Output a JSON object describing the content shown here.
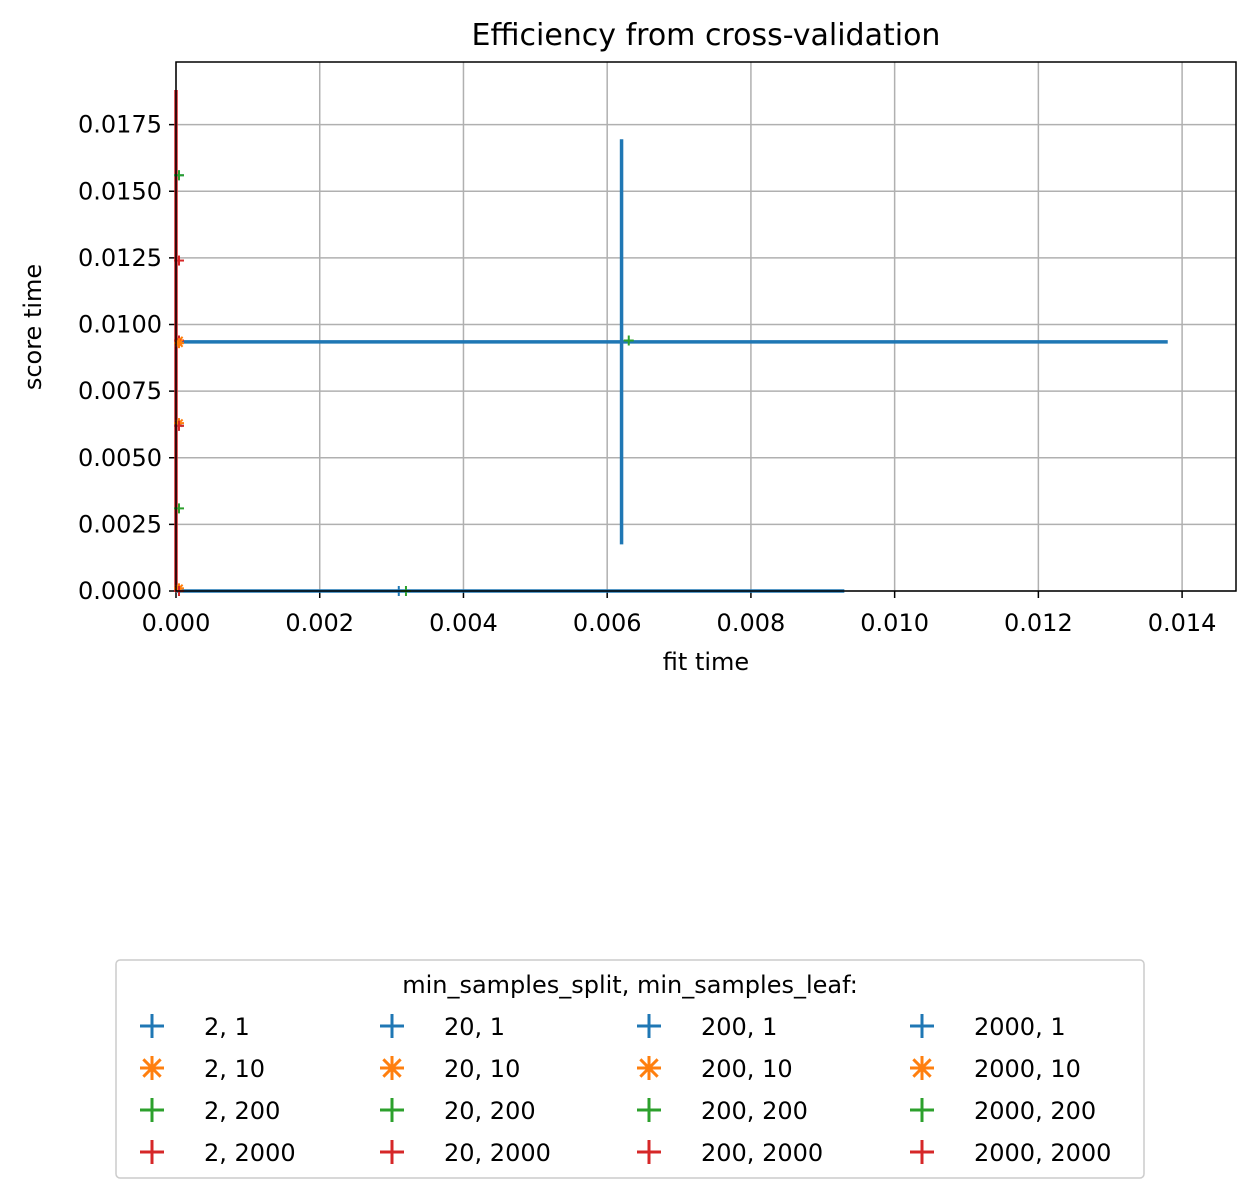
{
  "chart_data": {
    "type": "scatter",
    "title": "Efficiency from cross-validation",
    "xlabel": "fit time",
    "ylabel": "score time",
    "xlim": [
      0,
      0.01475
    ],
    "ylim": [
      0,
      0.01985
    ],
    "x_ticks": [
      0.0,
      0.002,
      0.004,
      0.006,
      0.008,
      0.01,
      0.012,
      0.014
    ],
    "x_tick_labels": [
      "0.000",
      "0.002",
      "0.004",
      "0.006",
      "0.008",
      "0.010",
      "0.012",
      "0.014"
    ],
    "y_ticks": [
      0.0,
      0.0025,
      0.005,
      0.0075,
      0.01,
      0.0125,
      0.015,
      0.0175
    ],
    "y_tick_labels": [
      "0.0000",
      "0.0025",
      "0.0050",
      "0.0075",
      "0.0100",
      "0.0125",
      "0.0150",
      "0.0175"
    ],
    "grid": true,
    "legend": {
      "title": "min_samples_split, min_samples_leaf:",
      "placement": "below-center",
      "columns": 4
    },
    "series": [
      {
        "name": "2, 1",
        "color": "#1f77b4",
        "marker": "plus",
        "x": 0.0062,
        "y": 0.00935,
        "xerr": 0.0076,
        "yerr": 0.0076
      },
      {
        "name": "2, 10",
        "color": "#ff7f0e",
        "marker": "star",
        "x": 0.0,
        "y": 0.0094,
        "xerr": 0.0,
        "yerr": 0.0
      },
      {
        "name": "2, 200",
        "color": "#2ca02c",
        "marker": "plus",
        "x": 0.0063,
        "y": 0.0094,
        "xerr": 0.0,
        "yerr": 0.0
      },
      {
        "name": "2, 2000",
        "color": "#d62728",
        "marker": "plus",
        "x": 0.0,
        "y": 0.0094,
        "xerr": 0.0,
        "yerr": 0.0094
      },
      {
        "name": "20, 1",
        "color": "#1f77b4",
        "marker": "plus",
        "x": 0.0031,
        "y": 0.0,
        "xerr": 0.0062,
        "yerr": 0.0
      },
      {
        "name": "20, 10",
        "color": "#ff7f0e",
        "marker": "star",
        "x": 0.0,
        "y": 0.0001,
        "xerr": 0.0,
        "yerr": 0.0
      },
      {
        "name": "20, 200",
        "color": "#2ca02c",
        "marker": "plus",
        "x": 0.0032,
        "y": 0.0,
        "xerr": 0.0,
        "yerr": 0.0
      },
      {
        "name": "20, 2000",
        "color": "#d62728",
        "marker": "plus",
        "x": 0.0,
        "y": 0.0,
        "xerr": 0.0,
        "yerr": 0.0
      },
      {
        "name": "200, 1",
        "color": "#1f77b4",
        "marker": "plus",
        "x": 0.0,
        "y": 0.0156,
        "xerr": 0.0,
        "yerr": 0.0
      },
      {
        "name": "200, 10",
        "color": "#ff7f0e",
        "marker": "star",
        "x": 0.0,
        "y": 0.0063,
        "xerr": 0.0,
        "yerr": 0.0
      },
      {
        "name": "200, 200",
        "color": "#2ca02c",
        "marker": "plus",
        "x": 0.0,
        "y": 0.0031,
        "xerr": 0.0,
        "yerr": 0.0
      },
      {
        "name": "200, 2000",
        "color": "#d62728",
        "marker": "plus",
        "x": 0.0,
        "y": 0.0124,
        "xerr": 0.0,
        "yerr": 0.0
      },
      {
        "name": "2000, 1",
        "color": "#1f77b4",
        "marker": "plus",
        "x": 0.0,
        "y": 0.0062,
        "xerr": 0.0,
        "yerr": 0.0
      },
      {
        "name": "2000, 10",
        "color": "#ff7f0e",
        "marker": "star",
        "x": 0.0,
        "y": 0.0093,
        "xerr": 0.0,
        "yerr": 0.0
      },
      {
        "name": "2000, 200",
        "color": "#2ca02c",
        "marker": "plus",
        "x": 0.0,
        "y": 0.0156,
        "xerr": 0.0,
        "yerr": 0.0
      },
      {
        "name": "2000, 2000",
        "color": "#d62728",
        "marker": "plus",
        "x": 0.0,
        "y": 0.0062,
        "xerr": 0.0,
        "yerr": 0.0
      }
    ]
  }
}
